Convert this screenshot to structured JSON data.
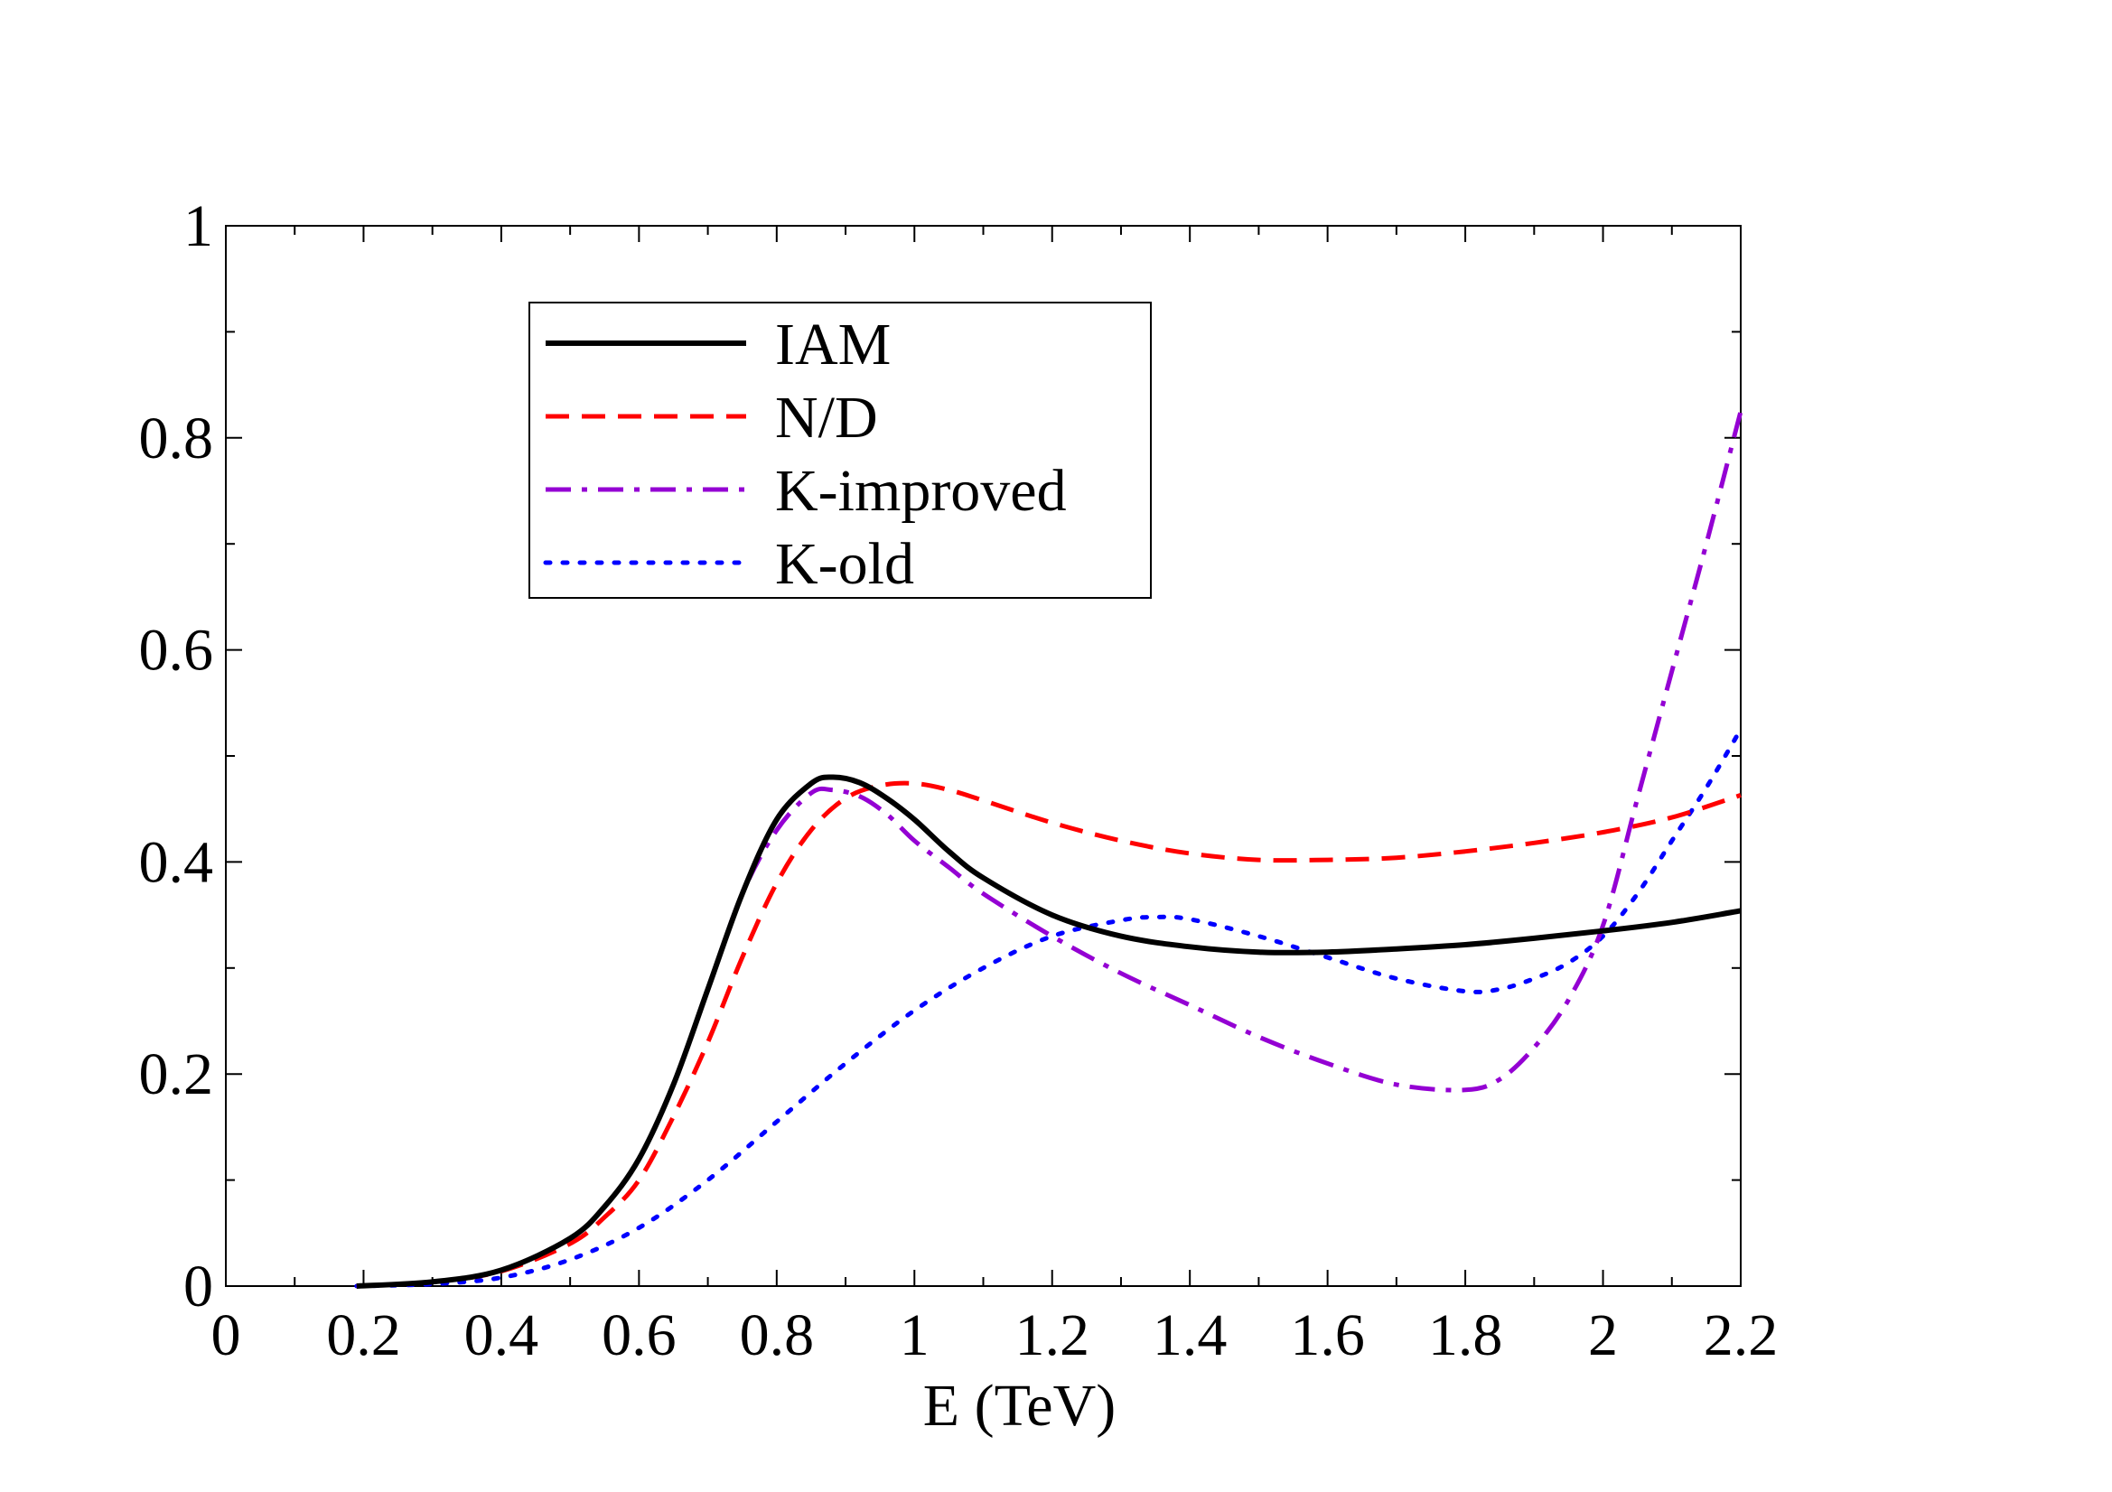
{
  "chart_data": {
    "type": "line",
    "title": "",
    "xlabel": "E (TeV)",
    "ylabel": "",
    "xlim": [
      0,
      2.2
    ],
    "ylim": [
      0,
      1
    ],
    "xticks": [
      0,
      0.2,
      0.4,
      0.6,
      0.8,
      1,
      1.2,
      1.4,
      1.6,
      1.8,
      2,
      2.2
    ],
    "xtick_labels": [
      "0",
      "0.2",
      "0.4",
      "0.6",
      "0.8",
      "1",
      "1.2",
      "1.4",
      "1.6",
      "1.8",
      "2",
      "2.2"
    ],
    "yticks": [
      0,
      0.2,
      0.4,
      0.6,
      0.8,
      1
    ],
    "ytick_labels": [
      "0",
      "0.2",
      "0.4",
      "0.6",
      "0.8",
      "1"
    ],
    "legend_position": "top-left",
    "series": [
      {
        "name": "IAM",
        "color": "#000000",
        "style": "solid",
        "x": [
          0.19,
          0.3,
          0.4,
          0.5,
          0.55,
          0.6,
          0.65,
          0.7,
          0.75,
          0.8,
          0.85,
          0.88,
          0.92,
          0.96,
          1.0,
          1.05,
          1.1,
          1.2,
          1.3,
          1.4,
          1.5,
          1.6,
          1.7,
          1.8,
          1.9,
          2.0,
          2.1,
          2.2
        ],
        "y": [
          0.0,
          0.004,
          0.015,
          0.045,
          0.075,
          0.12,
          0.19,
          0.28,
          0.37,
          0.44,
          0.474,
          0.48,
          0.475,
          0.46,
          0.44,
          0.41,
          0.385,
          0.35,
          0.33,
          0.32,
          0.315,
          0.315,
          0.318,
          0.322,
          0.328,
          0.335,
          0.343,
          0.354
        ]
      },
      {
        "name": "N/D",
        "color": "#ff0000",
        "style": "dashed",
        "x": [
          0.19,
          0.3,
          0.4,
          0.5,
          0.55,
          0.6,
          0.65,
          0.7,
          0.75,
          0.8,
          0.85,
          0.9,
          0.95,
          1.0,
          1.05,
          1.1,
          1.2,
          1.3,
          1.4,
          1.5,
          1.6,
          1.7,
          1.8,
          1.9,
          2.0,
          2.1,
          2.2
        ],
        "y": [
          0.0,
          0.004,
          0.014,
          0.04,
          0.065,
          0.1,
          0.16,
          0.23,
          0.31,
          0.38,
          0.43,
          0.46,
          0.472,
          0.474,
          0.468,
          0.458,
          0.437,
          0.42,
          0.408,
          0.402,
          0.402,
          0.404,
          0.41,
          0.418,
          0.428,
          0.442,
          0.463
        ]
      },
      {
        "name": "K-improved",
        "color": "#9400d3",
        "style": "dashdot",
        "x": [
          0.19,
          0.3,
          0.4,
          0.5,
          0.55,
          0.6,
          0.65,
          0.7,
          0.75,
          0.8,
          0.85,
          0.88,
          0.92,
          0.96,
          1.0,
          1.05,
          1.1,
          1.2,
          1.3,
          1.4,
          1.5,
          1.6,
          1.7,
          1.8,
          1.85,
          1.9,
          1.95,
          2.0,
          2.05,
          2.1,
          2.15,
          2.2
        ],
        "y": [
          0.0,
          0.004,
          0.015,
          0.045,
          0.075,
          0.12,
          0.19,
          0.28,
          0.37,
          0.43,
          0.465,
          0.468,
          0.462,
          0.445,
          0.42,
          0.395,
          0.37,
          0.33,
          0.295,
          0.265,
          0.235,
          0.21,
          0.19,
          0.185,
          0.195,
          0.225,
          0.27,
          0.34,
          0.46,
          0.58,
          0.7,
          0.825
        ]
      },
      {
        "name": "K-old",
        "color": "#0000ff",
        "style": "dotted",
        "x": [
          0.19,
          0.3,
          0.4,
          0.5,
          0.6,
          0.7,
          0.8,
          0.9,
          1.0,
          1.1,
          1.2,
          1.3,
          1.35,
          1.4,
          1.5,
          1.6,
          1.7,
          1.8,
          1.85,
          1.9,
          1.95,
          2.0,
          2.05,
          2.1,
          2.15,
          2.2
        ],
        "y": [
          0.0,
          0.002,
          0.008,
          0.025,
          0.055,
          0.1,
          0.155,
          0.21,
          0.26,
          0.3,
          0.33,
          0.345,
          0.348,
          0.346,
          0.33,
          0.31,
          0.29,
          0.278,
          0.28,
          0.29,
          0.305,
          0.33,
          0.37,
          0.42,
          0.47,
          0.525
        ]
      }
    ]
  }
}
